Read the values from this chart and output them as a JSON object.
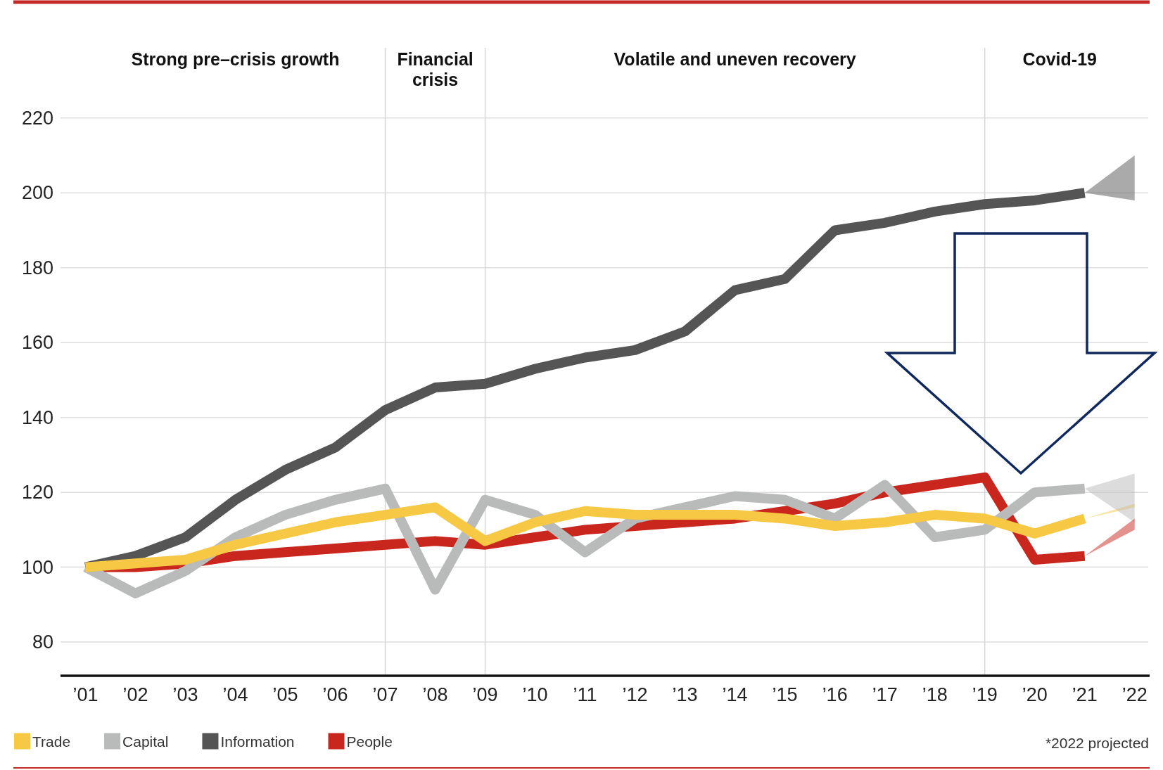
{
  "chart_data": {
    "type": "line",
    "x": [
      2001,
      2002,
      2003,
      2004,
      2005,
      2006,
      2007,
      2008,
      2009,
      2010,
      2011,
      2012,
      2013,
      2014,
      2015,
      2016,
      2017,
      2018,
      2019,
      2020,
      2021,
      2022
    ],
    "xlim": [
      2000.5,
      2022.3
    ],
    "xticks": [
      {
        "value": 2001,
        "label": "’01"
      },
      {
        "value": 2002,
        "label": "’02"
      },
      {
        "value": 2003,
        "label": "’03"
      },
      {
        "value": 2004,
        "label": "’04"
      },
      {
        "value": 2005,
        "label": "’05"
      },
      {
        "value": 2006,
        "label": "’06"
      },
      {
        "value": 2007,
        "label": "’07"
      },
      {
        "value": 2008,
        "label": "’08"
      },
      {
        "value": 2009,
        "label": "’09"
      },
      {
        "value": 2010,
        "label": "’10"
      },
      {
        "value": 2011,
        "label": "’11"
      },
      {
        "value": 2012,
        "label": "’12"
      },
      {
        "value": 2013,
        "label": "’13"
      },
      {
        "value": 2014,
        "label": "’14"
      },
      {
        "value": 2015,
        "label": "’15"
      },
      {
        "value": 2016,
        "label": "’16"
      },
      {
        "value": 2017,
        "label": "’17"
      },
      {
        "value": 2018,
        "label": "’18"
      },
      {
        "value": 2019,
        "label": "’19"
      },
      {
        "value": 2020,
        "label": "’20"
      },
      {
        "value": 2021,
        "label": "’21"
      },
      {
        "value": 2022,
        "label": "’22"
      }
    ],
    "ylim": [
      71,
      238
    ],
    "yticks": [
      80,
      100,
      120,
      140,
      160,
      180,
      200,
      220
    ],
    "series": [
      {
        "name": "Trade",
        "color": "#f6c844",
        "values": [
          100,
          101,
          102,
          106,
          109,
          112,
          114,
          116,
          107,
          112,
          115,
          114,
          114,
          114,
          113,
          111,
          112,
          114,
          113,
          109,
          113,
          null
        ],
        "lower": [
          null,
          null,
          null,
          null,
          null,
          null,
          null,
          null,
          null,
          null,
          null,
          null,
          null,
          null,
          null,
          null,
          null,
          null,
          null,
          null,
          113,
          116
        ],
        "upper": [
          null,
          null,
          null,
          null,
          null,
          null,
          null,
          null,
          null,
          null,
          null,
          null,
          null,
          null,
          null,
          null,
          null,
          null,
          null,
          null,
          113,
          117
        ]
      },
      {
        "name": "Capital",
        "color": "#b9baba",
        "values": [
          100,
          93,
          99,
          108,
          114,
          118,
          121,
          94,
          118,
          114,
          104,
          113,
          116,
          119,
          118,
          113,
          122,
          108,
          110,
          120,
          121,
          null
        ],
        "lower": [
          null,
          null,
          null,
          null,
          null,
          null,
          null,
          null,
          null,
          null,
          null,
          null,
          null,
          null,
          null,
          null,
          null,
          null,
          null,
          null,
          121,
          112
        ],
        "upper": [
          null,
          null,
          null,
          null,
          null,
          null,
          null,
          null,
          null,
          null,
          null,
          null,
          null,
          null,
          null,
          null,
          null,
          null,
          null,
          null,
          121,
          125
        ]
      },
      {
        "name": "Information",
        "color": "#555555",
        "values": [
          100,
          103,
          108,
          118,
          126,
          132,
          142,
          148,
          149,
          153,
          156,
          158,
          163,
          174,
          177,
          190,
          192,
          195,
          197,
          198,
          200,
          null
        ],
        "lower": [
          null,
          null,
          null,
          null,
          null,
          null,
          null,
          null,
          null,
          null,
          null,
          null,
          null,
          null,
          null,
          null,
          null,
          null,
          null,
          null,
          200,
          198
        ],
        "upper": [
          null,
          null,
          null,
          null,
          null,
          null,
          null,
          null,
          null,
          null,
          null,
          null,
          null,
          null,
          null,
          null,
          null,
          null,
          null,
          null,
          200,
          210
        ]
      },
      {
        "name": "People",
        "color": "#c9261d",
        "values": [
          100,
          100,
          101,
          103,
          104,
          105,
          106,
          107,
          106,
          108,
          110,
          111,
          112,
          113,
          115,
          117,
          120,
          122,
          124,
          102,
          103,
          null
        ],
        "lower": [
          null,
          null,
          null,
          null,
          null,
          null,
          null,
          null,
          null,
          null,
          null,
          null,
          null,
          null,
          null,
          null,
          null,
          null,
          null,
          null,
          103,
          110
        ],
        "upper": [
          null,
          null,
          null,
          null,
          null,
          null,
          null,
          null,
          null,
          null,
          null,
          null,
          null,
          null,
          null,
          null,
          null,
          null,
          null,
          null,
          103,
          113
        ]
      }
    ],
    "ref_lines": [
      {
        "axis": "x",
        "value": 2007
      },
      {
        "axis": "x",
        "value": 2009
      },
      {
        "axis": "x",
        "value": 2019
      }
    ],
    "grid": "y",
    "legend": "bottom",
    "annotations": [
      "Strong pre–crisis growth",
      "Financial crisis",
      "Volatile and uneven recovery",
      "Covid-19",
      "*2022 projected"
    ]
  }
}
